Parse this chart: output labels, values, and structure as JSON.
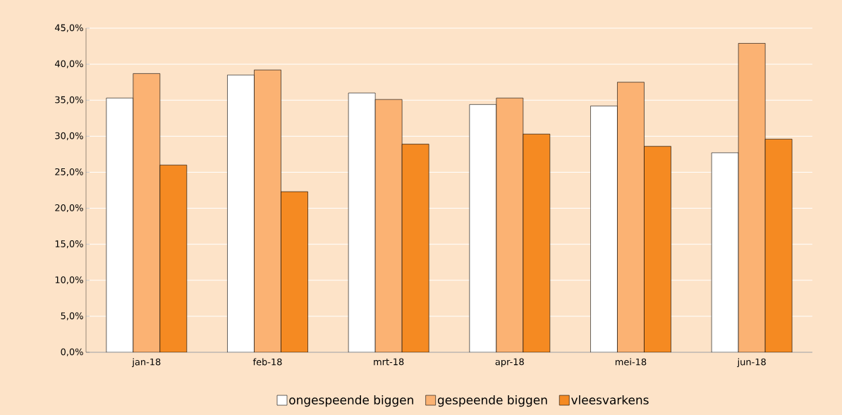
{
  "chart_data": {
    "type": "bar",
    "categories": [
      "jan-18",
      "feb-18",
      "mrt-18",
      "apr-18",
      "mei-18",
      "jun-18"
    ],
    "series": [
      {
        "name": "ongespeende biggen",
        "color": "#ffffff",
        "values": [
          35.3,
          38.5,
          36.0,
          34.4,
          34.2,
          27.7
        ]
      },
      {
        "name": "gespeende biggen",
        "color": "#fbb273",
        "values": [
          38.7,
          39.2,
          35.1,
          35.3,
          37.5,
          42.9
        ]
      },
      {
        "name": "vleesvarkens",
        "color": "#f58a22",
        "values": [
          26.0,
          22.3,
          28.9,
          30.3,
          28.6,
          29.6
        ]
      }
    ],
    "ylim": [
      0,
      45
    ],
    "yticks": [
      {
        "value": 0,
        "label": "0,0%"
      },
      {
        "value": 5,
        "label": "5,0%"
      },
      {
        "value": 10,
        "label": "10,0%"
      },
      {
        "value": 15,
        "label": "15,0%"
      },
      {
        "value": 20,
        "label": "20,0%"
      },
      {
        "value": 25,
        "label": "25,0%"
      },
      {
        "value": 30,
        "label": "30,0%"
      },
      {
        "value": 35,
        "label": "35,0%"
      },
      {
        "value": 40,
        "label": "40,0%"
      },
      {
        "value": 45,
        "label": "45,0%"
      }
    ],
    "grid": "y",
    "legend": "bottom"
  }
}
